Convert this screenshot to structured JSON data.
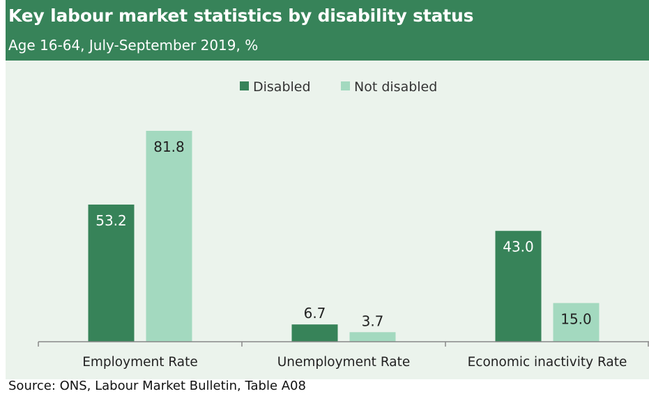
{
  "header": {
    "title": "Key labour market statistics by disability status",
    "subtitle": "Age 16-64, July-September 2019, %"
  },
  "footer": {
    "source": "Source: ONS, Labour Market Bulletin, Table A08"
  },
  "colors": {
    "header_bg": "#378359",
    "plot_bg": "#ebf3ec",
    "disabled": "#378359",
    "not_disabled": "#a3d9bf"
  },
  "chart_data": {
    "type": "bar",
    "title": "Key labour market statistics by disability status",
    "subtitle": "Age 16-64, July-September 2019, %",
    "categories": [
      "Employment Rate",
      "Unemployment Rate",
      "Economic inactivity Rate"
    ],
    "series": [
      {
        "name": "Disabled",
        "color": "#378359",
        "values": [
          53.2,
          6.7,
          43.0
        ],
        "labels": [
          "53.2",
          "6.7",
          "43.0"
        ]
      },
      {
        "name": "Not disabled",
        "color": "#a3d9bf",
        "values": [
          81.8,
          3.7,
          15.0
        ],
        "labels": [
          "81.8",
          "3.7",
          "15.0"
        ]
      }
    ],
    "ylim": [
      0,
      81.8
    ],
    "legend_position": "top-center",
    "grid": false
  }
}
